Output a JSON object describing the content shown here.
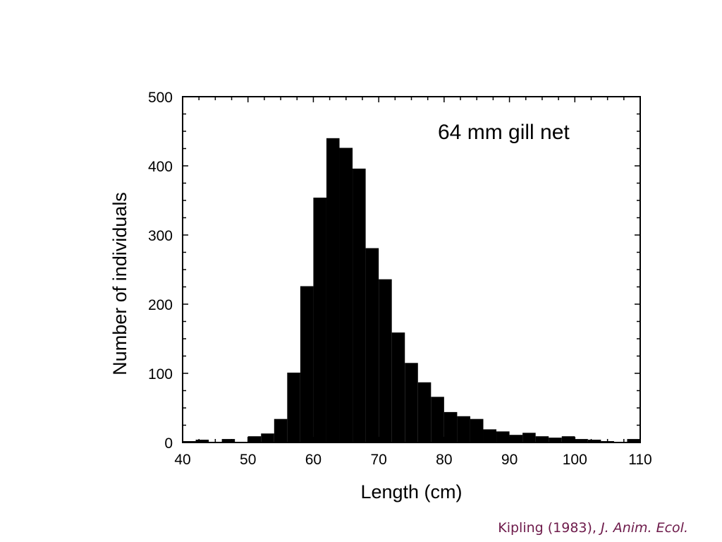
{
  "chart_data": {
    "type": "bar",
    "histogram": true,
    "bin_width": 2,
    "bin_starts": [
      40,
      42,
      44,
      46,
      48,
      50,
      52,
      54,
      56,
      58,
      60,
      62,
      64,
      66,
      68,
      70,
      72,
      74,
      76,
      78,
      80,
      82,
      84,
      86,
      88,
      90,
      92,
      94,
      96,
      98,
      100,
      102,
      104,
      106,
      108
    ],
    "values": [
      2,
      4,
      0,
      5,
      0,
      9,
      13,
      34,
      101,
      226,
      354,
      440,
      426,
      396,
      281,
      236,
      159,
      115,
      87,
      66,
      44,
      38,
      34,
      19,
      16,
      11,
      14,
      9,
      7,
      9,
      5,
      4,
      2,
      1,
      5
    ],
    "xlabel": "Length (cm)",
    "ylabel": "Number of individuals",
    "xlim": [
      40,
      110
    ],
    "ylim": [
      0,
      500
    ],
    "x_ticks": [
      40,
      50,
      60,
      70,
      80,
      90,
      100,
      110
    ],
    "y_ticks": [
      0,
      100,
      200,
      300,
      400,
      500
    ],
    "annotation": "64 mm gill net",
    "bar_color": "#000000",
    "grid": false,
    "legend": "none"
  },
  "citation": {
    "prefix": "Kipling (1983), ",
    "journal": "J. Anim. Ecol.",
    "color": "#6d1a4a"
  }
}
